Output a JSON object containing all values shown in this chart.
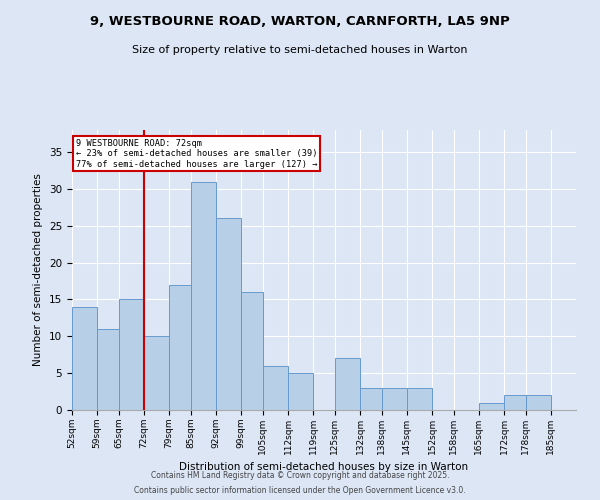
{
  "title": "9, WESTBOURNE ROAD, WARTON, CARNFORTH, LA5 9NP",
  "subtitle": "Size of property relative to semi-detached houses in Warton",
  "xlabel": "Distribution of semi-detached houses by size in Warton",
  "ylabel": "Number of semi-detached properties",
  "bins": [
    52,
    59,
    65,
    72,
    79,
    85,
    92,
    99,
    105,
    112,
    119,
    125,
    132,
    138,
    145,
    152,
    158,
    165,
    172,
    178,
    185
  ],
  "values": [
    14,
    11,
    15,
    10,
    17,
    31,
    26,
    16,
    6,
    5,
    0,
    7,
    3,
    3,
    3,
    0,
    0,
    1,
    2,
    2
  ],
  "bar_color": "#b8cfe8",
  "bar_edge_color": "#6699cc",
  "red_line_x": 72,
  "annotation_title": "9 WESTBOURNE ROAD: 72sqm",
  "annotation_line1": "← 23% of semi-detached houses are smaller (39)",
  "annotation_line2": "77% of semi-detached houses are larger (127) →",
  "annotation_box_color": "#ffffff",
  "annotation_box_edge_color": "#cc0000",
  "ylim": [
    0,
    38
  ],
  "background_color": "#dce6f5",
  "grid_color": "#ffffff",
  "footer1": "Contains HM Land Registry data © Crown copyright and database right 2025.",
  "footer2": "Contains public sector information licensed under the Open Government Licence v3.0."
}
